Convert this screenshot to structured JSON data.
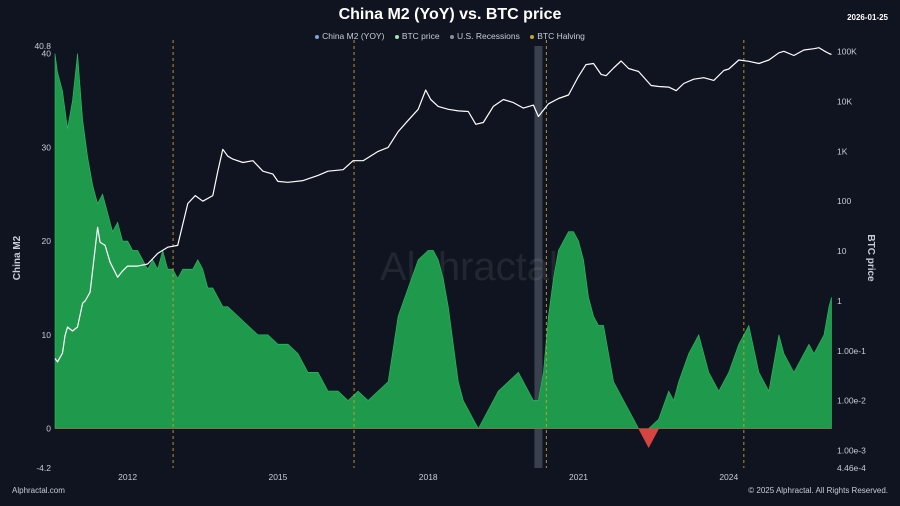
{
  "date_stamp": "2026-01-25",
  "footer": {
    "left": "Alphractal.com",
    "right": "© 2025 Alphractal. All Rights Reserved."
  },
  "watermark": "Alphractal",
  "colors": {
    "background": "#0f1420",
    "m2_positive": "#1f9a4c",
    "m2_negative": "#d64541",
    "btc_line": "#ffffff",
    "halving": "#c9a227",
    "recession": "#4a4f5c"
  },
  "chart_data": {
    "type": "area",
    "title": "China M2 (YoY) vs. BTC price",
    "legend": [
      "China M2 (YOY)",
      "BTC price",
      "U.S. Recessions",
      "BTC Halving"
    ],
    "legend_placement": "top-center",
    "xlabel": "",
    "ylabel_left": "China M2",
    "ylabel_right": "BTC price",
    "x_ticks": [
      "2012",
      "2015",
      "2018",
      "2021",
      "2024"
    ],
    "xlim": [
      2010.55,
      2026.08
    ],
    "y_left_lim": [
      -4.2,
      40.8
    ],
    "y_left_ticks": [
      "-4.2",
      "0",
      "10",
      "20",
      "30",
      "40",
      "40.8"
    ],
    "y_right_scale": "log",
    "y_right_lim": [
      0.000446,
      130000
    ],
    "y_right_ticks": [
      "4.46e-4",
      "1.00e-3",
      "1.00e-2",
      "1.00e-1",
      "1",
      "10",
      "100",
      "1K",
      "10K",
      "100K"
    ],
    "grid": false,
    "recessions": [
      [
        2020.12,
        2020.28
      ]
    ],
    "halvings": [
      "2012-11-28",
      "2016-07-09",
      "2020-05-11",
      "2024-04-20"
    ],
    "series": [
      {
        "name": "China M2 (YOY)",
        "x": [
          2010.55,
          2010.6,
          2010.7,
          2010.8,
          2010.9,
          2011.0,
          2011.1,
          2011.2,
          2011.3,
          2011.4,
          2011.5,
          2011.6,
          2011.7,
          2011.8,
          2011.9,
          2012.0,
          2012.1,
          2012.2,
          2012.3,
          2012.4,
          2012.5,
          2012.6,
          2012.7,
          2012.8,
          2012.9,
          2013.0,
          2013.1,
          2013.2,
          2013.3,
          2013.4,
          2013.5,
          2013.6,
          2013.7,
          2013.8,
          2013.9,
          2014.0,
          2014.2,
          2014.4,
          2014.6,
          2014.8,
          2015.0,
          2015.2,
          2015.4,
          2015.6,
          2015.8,
          2016.0,
          2016.2,
          2016.4,
          2016.6,
          2016.8,
          2017.0,
          2017.2,
          2017.4,
          2017.6,
          2017.8,
          2018.0,
          2018.1,
          2018.2,
          2018.3,
          2018.4,
          2018.5,
          2018.6,
          2018.7,
          2018.8,
          2018.9,
          2019.0,
          2019.2,
          2019.4,
          2019.6,
          2019.8,
          2020.0,
          2020.1,
          2020.2,
          2020.3,
          2020.4,
          2020.5,
          2020.6,
          2020.7,
          2020.8,
          2020.9,
          2021.0,
          2021.1,
          2021.2,
          2021.3,
          2021.4,
          2021.5,
          2021.6,
          2021.7,
          2021.8,
          2022.0,
          2022.2,
          2022.4,
          2022.6,
          2022.8,
          2022.9,
          2023.0,
          2023.2,
          2023.4,
          2023.6,
          2023.8,
          2024.0,
          2024.2,
          2024.4,
          2024.6,
          2024.8,
          2025.0,
          2025.1,
          2025.2,
          2025.3,
          2025.4,
          2025.5,
          2025.6,
          2025.7,
          2025.8,
          2025.9,
          2026.0,
          2026.05
        ],
        "values": [
          40,
          38,
          36,
          32,
          35,
          40,
          33,
          29,
          26,
          24,
          25,
          23,
          21,
          22,
          20,
          20,
          19,
          19,
          18,
          17,
          18,
          17,
          19,
          17,
          17,
          16,
          17,
          17,
          17,
          18,
          17,
          15,
          15,
          14,
          13,
          13,
          12,
          11,
          10,
          10,
          9,
          9,
          8,
          6,
          6,
          4,
          4,
          3,
          4,
          3,
          4,
          5,
          12,
          15,
          18,
          19,
          19,
          18,
          16,
          13,
          9,
          5,
          3,
          2,
          1,
          0,
          2,
          4,
          5,
          6,
          4,
          3,
          3,
          6,
          12,
          16,
          19,
          20,
          21,
          21,
          20,
          18,
          14,
          12,
          11,
          11,
          8,
          5,
          4,
          2,
          0,
          -2,
          1,
          4,
          3,
          5,
          8,
          10,
          6,
          4,
          6,
          9,
          11,
          6,
          4,
          10,
          8,
          7,
          6,
          7,
          8,
          9,
          8,
          9,
          10,
          13,
          14
        ]
      },
      {
        "name": "BTC price",
        "x": [
          2010.55,
          2010.6,
          2010.7,
          2010.75,
          2010.8,
          2010.9,
          2011.0,
          2011.1,
          2011.15,
          2011.25,
          2011.4,
          2011.45,
          2011.55,
          2011.65,
          2011.8,
          2011.9,
          2012.0,
          2012.2,
          2012.4,
          2012.6,
          2012.8,
          2013.0,
          2013.2,
          2013.35,
          2013.5,
          2013.7,
          2013.8,
          2013.9,
          2014.0,
          2014.1,
          2014.3,
          2014.5,
          2014.7,
          2014.9,
          2015.0,
          2015.2,
          2015.5,
          2015.8,
          2016.0,
          2016.3,
          2016.5,
          2016.7,
          2017.0,
          2017.2,
          2017.4,
          2017.6,
          2017.8,
          2017.95,
          2018.05,
          2018.2,
          2018.4,
          2018.6,
          2018.8,
          2018.95,
          2019.1,
          2019.3,
          2019.5,
          2019.7,
          2019.9,
          2020.1,
          2020.2,
          2020.4,
          2020.6,
          2020.8,
          2021.0,
          2021.15,
          2021.3,
          2021.45,
          2021.55,
          2021.7,
          2021.85,
          2022.0,
          2022.2,
          2022.45,
          2022.6,
          2022.8,
          2022.95,
          2023.1,
          2023.3,
          2023.5,
          2023.7,
          2023.9,
          2024.0,
          2024.2,
          2024.4,
          2024.6,
          2024.8,
          2025.0,
          2025.1,
          2025.3,
          2025.5,
          2025.7,
          2025.8,
          2025.9,
          2026.0,
          2026.05
        ],
        "values": [
          0.07,
          0.06,
          0.09,
          0.2,
          0.3,
          0.25,
          0.3,
          0.9,
          1,
          1.5,
          30,
          15,
          13,
          6,
          3,
          4,
          5,
          5,
          5.5,
          9,
          12,
          13,
          90,
          130,
          100,
          130,
          400,
          1100,
          800,
          700,
          600,
          650,
          400,
          350,
          250,
          240,
          260,
          330,
          400,
          430,
          650,
          650,
          1000,
          1200,
          2500,
          4200,
          7000,
          17000,
          11000,
          8000,
          7000,
          6500,
          6300,
          3500,
          3800,
          8000,
          11000,
          9500,
          7400,
          8500,
          5000,
          9000,
          11500,
          13500,
          32000,
          55000,
          58000,
          35000,
          33000,
          47000,
          65000,
          46000,
          40000,
          21000,
          20000,
          19500,
          16500,
          23000,
          28000,
          30000,
          26500,
          42000,
          45000,
          68000,
          64000,
          58000,
          68000,
          95000,
          102000,
          84000,
          108000,
          115000,
          120000,
          104000,
          92000,
          88000
        ]
      }
    ]
  }
}
